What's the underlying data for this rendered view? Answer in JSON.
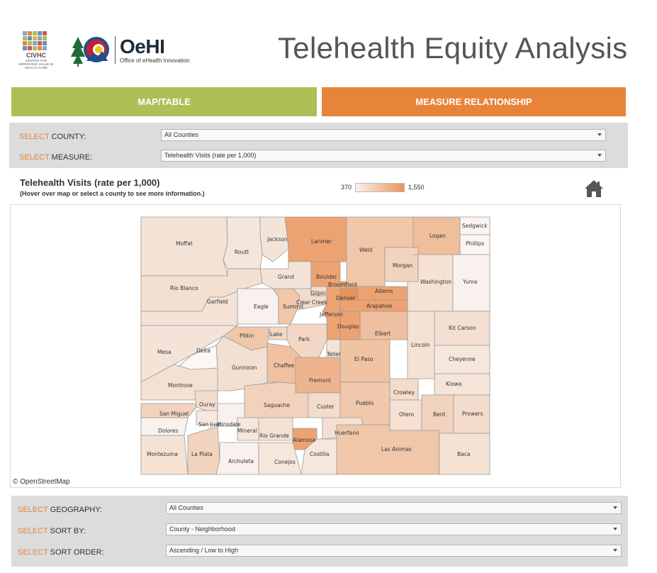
{
  "header": {
    "civhc_logo": {
      "name": "CIVHC",
      "tagline": "CENTER FOR IMPROVING VALUE IN HEALTH CARE"
    },
    "oehi_logo": {
      "name": "OeHI",
      "subtitle": "Office of eHealth Innovation"
    },
    "title": "Telehealth Equity Analysis"
  },
  "tabs": [
    {
      "label": "MAP/TABLE",
      "color": "#adbf55"
    },
    {
      "label": "MEASURE RELATIONSHIP",
      "color": "#e8843a"
    }
  ],
  "filters": {
    "county": {
      "prefix": "SELECT",
      "label": "COUNTY:",
      "value": "All Counties"
    },
    "measure": {
      "prefix": "SELECT",
      "label": "MEASURE:",
      "value": "Telehealth Visits (rate per 1,000)"
    }
  },
  "map": {
    "title": "Telehealth Visits (rate per 1,000)",
    "subtitle": "(Hover over map or select a county to see more information.)",
    "legend_min": "370",
    "legend_max": "1,550",
    "attribution": "© OpenStreetMap",
    "home_icon": "home-icon"
  },
  "counties": [
    "Moffat",
    "Routt",
    "Jackson",
    "Larimer",
    "Weld",
    "Logan",
    "Sedgwick",
    "Phillips",
    "Morgan",
    "Grand",
    "Boulder",
    "Broomfield",
    "Rio Blanco",
    "Garfield",
    "Eagle",
    "Summit",
    "Gilpin",
    "Clear Creek",
    "Denver",
    "Adams",
    "Washington",
    "Yuma",
    "Arapahoe",
    "Jefferson",
    "Douglas",
    "Elbert",
    "Kit Carson",
    "Pitkin",
    "Lake",
    "Park",
    "Mesa",
    "Delta",
    "Teller",
    "Lincoln",
    "Gunnison",
    "Chaffee",
    "El Paso",
    "Cheyenne",
    "Montrose",
    "Fremont",
    "Kiowa",
    "Crowley",
    "Ouray",
    "Saguache",
    "Custer",
    "Pueblo",
    "San Miguel",
    "Otero",
    "Bent",
    "Prowers",
    "San Juan",
    "Hinsdale",
    "Mineral",
    "Rio Grande",
    "Dolores",
    "Huerfano",
    "Alamosa",
    "Las Animas",
    "Montezuma",
    "La Plata",
    "Archuleta",
    "Conejos",
    "Costilla",
    "Baca"
  ],
  "bottom_filters": {
    "geography": {
      "prefix": "SELECT",
      "label": "GEOGRAPHY:",
      "value": "All Counties"
    },
    "sort_by": {
      "prefix": "SELECT",
      "label": "SORT BY:",
      "value": "County - Neighborhood"
    },
    "sort_order": {
      "prefix": "SELECT",
      "label": "SORT ORDER:",
      "value": "Ascending / Low to High"
    }
  },
  "colors": {
    "accent_orange": "#e8843a",
    "accent_green": "#adbf55",
    "panel_gray": "#dcdcdc",
    "scale_low": "#fbf2ec",
    "scale_high": "#e8935a"
  }
}
